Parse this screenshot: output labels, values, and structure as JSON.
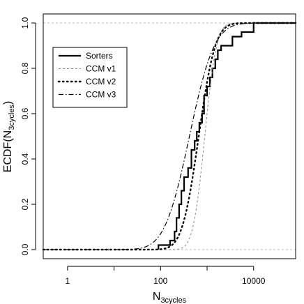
{
  "chart_data": {
    "type": "line",
    "subtype": "ecdf-step",
    "xscale": "log10",
    "xlim": [
      0.3,
      80000
    ],
    "ylim": [
      0,
      1
    ],
    "xlabel": {
      "main": "N",
      "sub": "3cycles"
    },
    "ylabel": {
      "main": "ECDF(N",
      "sub": "3cycles",
      "close": ")"
    },
    "x_ticks": [
      1,
      10,
      100,
      1000,
      10000
    ],
    "x_tick_labels": [
      "1",
      "",
      "100",
      "",
      "10000"
    ],
    "y_ticks": [
      0,
      0.2,
      0.4,
      0.6,
      0.8,
      1.0
    ],
    "y_tick_labels": [
      "0.0",
      "0.2",
      "0.4",
      "0.6",
      "0.8",
      "1.0"
    ],
    "reference_lines": [
      0,
      1
    ],
    "grid": false,
    "legend_position": "top-left",
    "series": [
      {
        "name": "Sorters",
        "style": "solid",
        "color": "#000000",
        "kind": "step",
        "points": [
          [
            90,
            0.0
          ],
          [
            90,
            0.02
          ],
          [
            160,
            0.02
          ],
          [
            160,
            0.04
          ],
          [
            200,
            0.04
          ],
          [
            200,
            0.08
          ],
          [
            220,
            0.08
          ],
          [
            220,
            0.14
          ],
          [
            250,
            0.14
          ],
          [
            250,
            0.2
          ],
          [
            280,
            0.2
          ],
          [
            280,
            0.26
          ],
          [
            320,
            0.26
          ],
          [
            320,
            0.32
          ],
          [
            390,
            0.32
          ],
          [
            390,
            0.36
          ],
          [
            460,
            0.36
          ],
          [
            460,
            0.44
          ],
          [
            540,
            0.44
          ],
          [
            540,
            0.48
          ],
          [
            600,
            0.48
          ],
          [
            600,
            0.52
          ],
          [
            680,
            0.52
          ],
          [
            680,
            0.56
          ],
          [
            780,
            0.56
          ],
          [
            780,
            0.6
          ],
          [
            860,
            0.6
          ],
          [
            860,
            0.68
          ],
          [
            1000,
            0.68
          ],
          [
            1000,
            0.72
          ],
          [
            1150,
            0.72
          ],
          [
            1150,
            0.76
          ],
          [
            1300,
            0.76
          ],
          [
            1300,
            0.8
          ],
          [
            1500,
            0.8
          ],
          [
            1500,
            0.84
          ],
          [
            1700,
            0.84
          ],
          [
            1700,
            0.88
          ],
          [
            2000,
            0.88
          ],
          [
            2000,
            0.9
          ],
          [
            3500,
            0.9
          ],
          [
            3500,
            0.94
          ],
          [
            5500,
            0.94
          ],
          [
            5500,
            0.96
          ],
          [
            10000,
            0.96
          ],
          [
            10000,
            1.0
          ],
          [
            80000,
            1.0
          ]
        ]
      },
      {
        "name": "CCM v1",
        "style": "dashed",
        "color": "#888888",
        "kind": "lognormal-cdf",
        "mu_log10": 2.95,
        "sigma_log10": 0.2
      },
      {
        "name": "CCM v2",
        "style": "dotted",
        "color": "#000000",
        "kind": "lognormal-cdf",
        "mu_log10": 2.82,
        "sigma_log10": 0.28
      },
      {
        "name": "CCM v3",
        "style": "dashdot",
        "color": "#000000",
        "kind": "lognormal-cdf",
        "mu_log10": 2.62,
        "sigma_log10": 0.42
      }
    ]
  }
}
